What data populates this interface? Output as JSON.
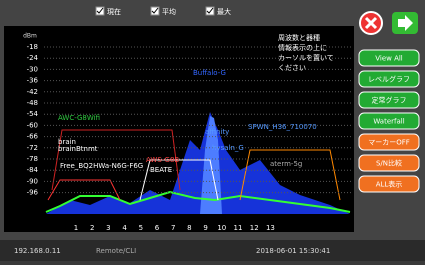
{
  "toolbar": {
    "checkboxes": [
      "現在",
      "平均",
      "最大"
    ]
  },
  "axis": {
    "unit": "dBm",
    "yticks": [
      "-18",
      "-24",
      "-30",
      "-36",
      "-42",
      "-48",
      "-54",
      "-60",
      "-66",
      "-72",
      "-78",
      "-84",
      "-90",
      "-96"
    ],
    "xticks": [
      "1",
      "2",
      "3",
      "4",
      "5",
      "6",
      "7",
      "8",
      "9",
      "10",
      "11",
      "12",
      "13"
    ]
  },
  "networks": [
    {
      "label": "AWC-G8Wifi",
      "color": "#2ecc40"
    },
    {
      "label": "brain",
      "color": "#ffffff"
    },
    {
      "label": "brainBtnmt",
      "color": "#ffffff"
    },
    {
      "label": "Free_BQ2HWa-N6G-F6G",
      "color": "#ffffff"
    },
    {
      "label": "AWS-G8B",
      "color": "#ff4444"
    },
    {
      "label": "BEATE",
      "color": "#ffffff"
    },
    {
      "label": "affinity",
      "color": "#5599ff"
    },
    {
      "label": "SPWN_H36_710070",
      "color": "#5599ff"
    },
    {
      "label": "hysaln_G",
      "color": "#5599ff"
    },
    {
      "label": "Buffalo-G",
      "color": "#3366ff"
    },
    {
      "label": "aterm-5g",
      "color": "#aaaaaa"
    }
  ],
  "info": [
    "周波数と器種",
    "情報表示の上に",
    "カーソルを置いて",
    "ください"
  ],
  "buttons": [
    "View All",
    "レベルグラフ",
    "定常グラフ",
    "Waterfall",
    "マーカーOFF",
    "S/N比較",
    "ALL表示"
  ],
  "status": {
    "ip": "192.168.0.11",
    "mode": "Remote/CLI",
    "datetime": "2018-06-01  15:30:41"
  }
}
